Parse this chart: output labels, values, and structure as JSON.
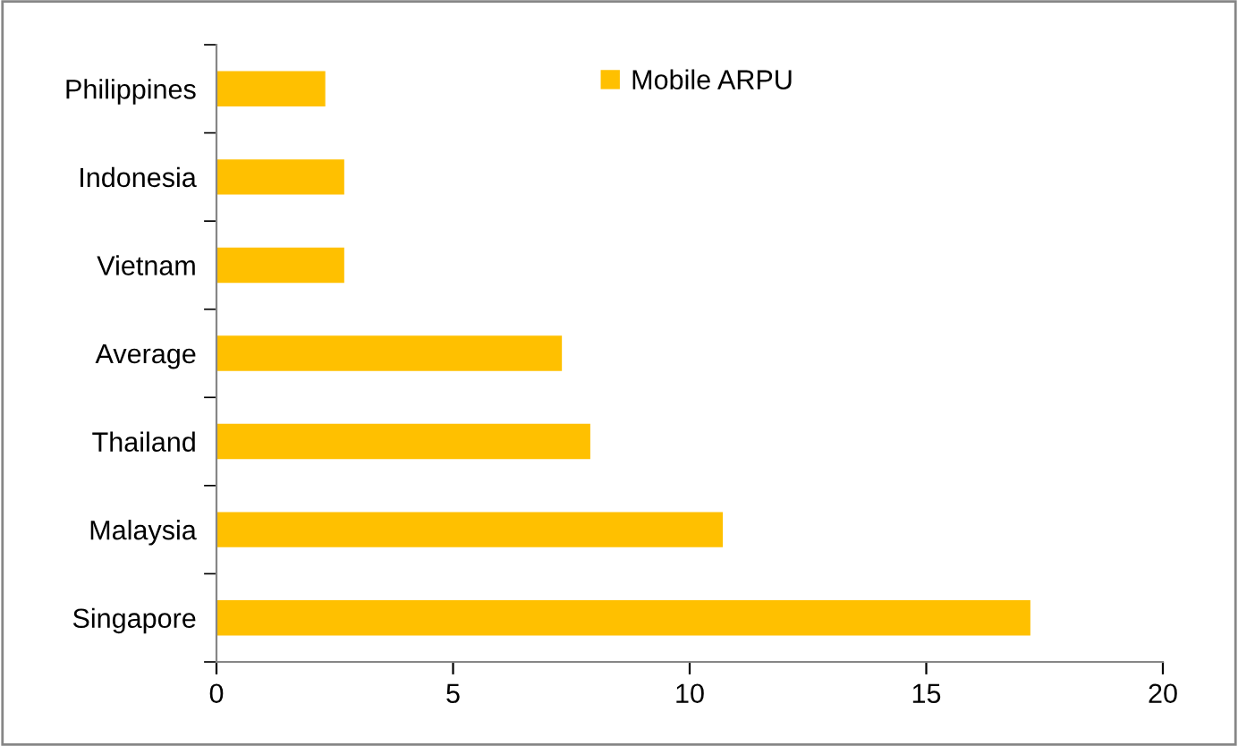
{
  "chart_data": {
    "type": "bar",
    "orientation": "horizontal",
    "categories": [
      "Philippines",
      "Indonesia",
      "Vietnam",
      "Average",
      "Thailand",
      "Malaysia",
      "Singapore"
    ],
    "series": [
      {
        "name": "Mobile ARPU",
        "color": "#ffc000",
        "values": [
          2.3,
          2.7,
          2.7,
          7.3,
          7.9,
          10.7,
          17.2
        ]
      }
    ],
    "xlim": [
      0,
      20
    ],
    "xticks": [
      0,
      5,
      10,
      15,
      20
    ],
    "grid": false,
    "legend": "top"
  }
}
